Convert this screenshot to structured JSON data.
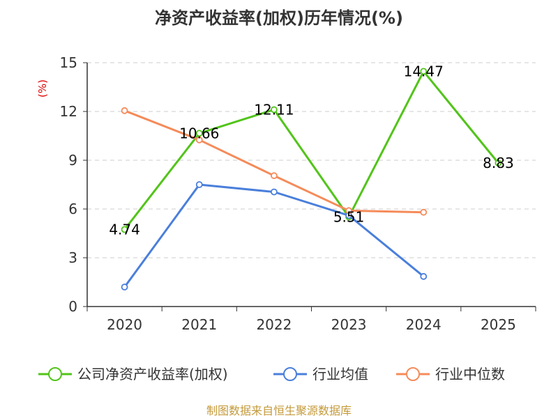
{
  "title": "净资产收益率(加权)历年情况(%)",
  "source": "制图数据来自恒生聚源数据库",
  "chart_data": {
    "type": "line",
    "title": "净资产收益率(加权)历年情况(%)",
    "ylabel": "(%)",
    "xlabel": "",
    "categories": [
      "2020",
      "2021",
      "2022",
      "2023",
      "2024",
      "2025"
    ],
    "ylim": [
      0,
      15
    ],
    "yticks": [
      0,
      3,
      6,
      9,
      12,
      15
    ],
    "grid": true,
    "legend_position": "bottom",
    "series": [
      {
        "name": "公司净资产收益率(加权)",
        "color": "#52c41a",
        "values": [
          4.74,
          10.66,
          12.11,
          5.51,
          14.47,
          8.83
        ],
        "labels": [
          "4.74",
          "10.66",
          "12.11",
          "5.51",
          "14.47",
          "8.83"
        ]
      },
      {
        "name": "行业均值",
        "color": "#4a7fdb",
        "values": [
          1.2,
          7.5,
          7.05,
          5.6,
          1.85,
          null
        ]
      },
      {
        "name": "行业中位数",
        "color": "#f58b5a",
        "values": [
          12.05,
          10.25,
          8.05,
          5.9,
          5.8,
          null
        ]
      }
    ]
  }
}
